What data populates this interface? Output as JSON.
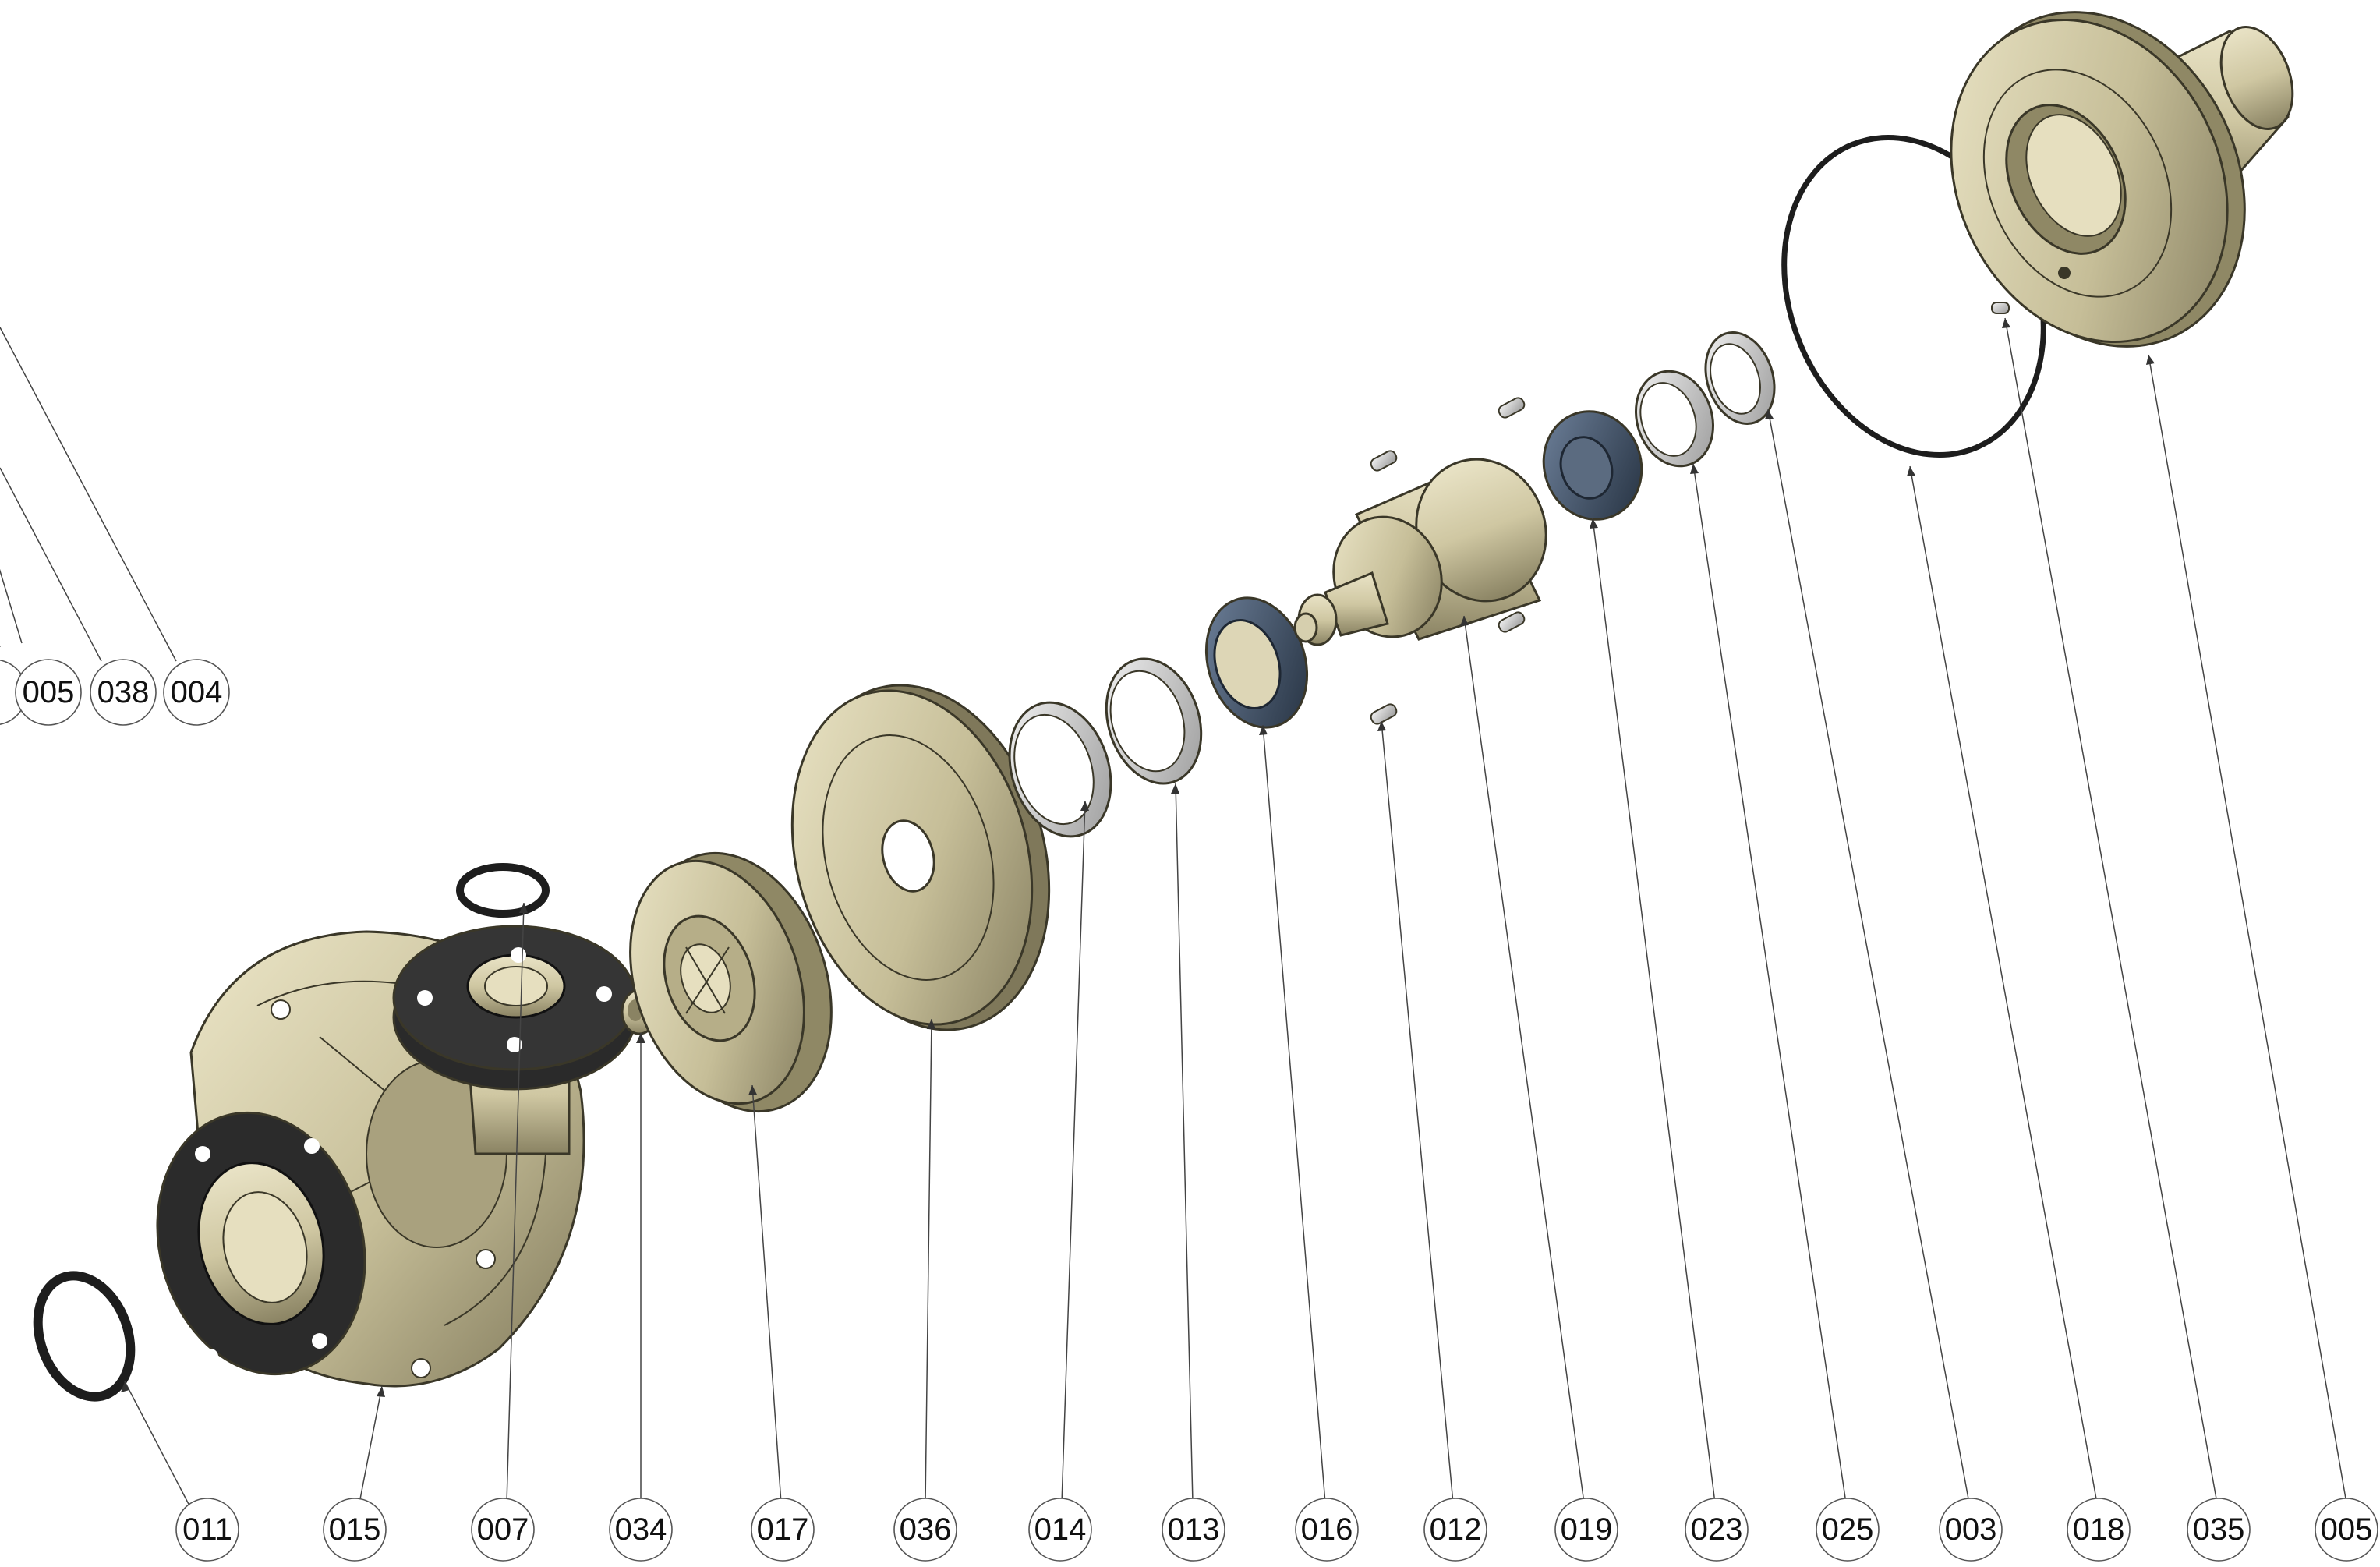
{
  "colors": {
    "body": "#c9c19c",
    "body_dark": "#8f8865",
    "body_light": "#e8e2c4",
    "flange_black": "#2b2b2b",
    "seal_blue": "#3d4f66",
    "ring_grey": "#d8d8d8",
    "outline": "#3a3728"
  },
  "callouts_bottom": [
    "011",
    "015",
    "007",
    "034",
    "017",
    "036",
    "014",
    "013",
    "016",
    "012",
    "019",
    "023",
    "025",
    "003",
    "018",
    "035",
    "005"
  ],
  "callouts_left": [
    "005",
    "038",
    "004"
  ]
}
